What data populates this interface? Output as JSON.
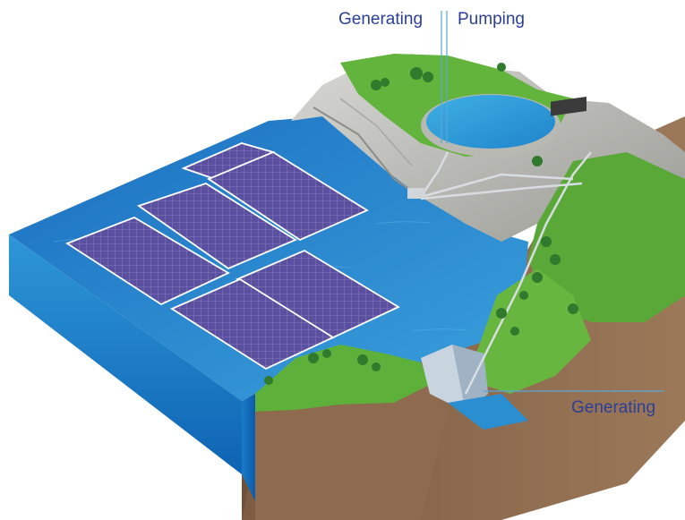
{
  "labels": {
    "generating_top": "Generating",
    "pumping": "Pumping",
    "generating_bottom": "Generating"
  },
  "colors": {
    "label_text": "#2b3f97",
    "water_top": "#2a8fd1",
    "water_side": "#1474c2",
    "solar_panel": "#5a4f9e",
    "panel_frame": "#ffffff",
    "grass": "#5fb23a",
    "rock": "#b7b7b2",
    "soil": "#8c6a4f",
    "leader_line": "#5aa6d6"
  },
  "icons": [
    "solar-panel-array",
    "upper-reservoir",
    "dam",
    "penstock-pipe",
    "powerhouse",
    "tree"
  ]
}
